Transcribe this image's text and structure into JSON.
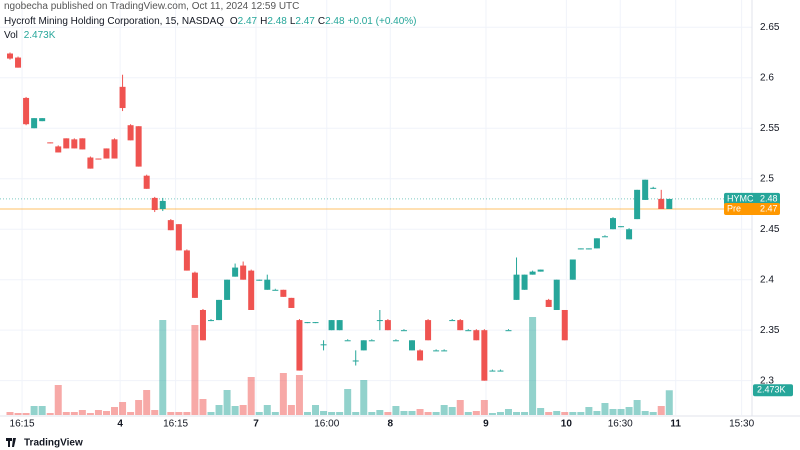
{
  "chart_data": {
    "type": "candlestick",
    "publisher": "ngobecha published on TradingView.com, Oct 11, 2024 12:59 UTC",
    "title": "Hycroft Mining Holding Corporation, 15, NASDAQ",
    "ohlc": [
      {
        "name": "O",
        "value": 2.47
      },
      {
        "name": "H",
        "value": 2.48
      },
      {
        "name": "L",
        "value": 2.47
      },
      {
        "name": "C",
        "value": 2.48
      }
    ],
    "change": "+0.01 (+0.40%)",
    "up_color": "#26a69a",
    "down_color": "#ef5350",
    "candles": {
      "open": [
        2.624,
        2.62,
        2.58,
        2.55,
        2.557,
        2.536,
        2.532,
        2.54,
        2.539,
        2.54,
        2.521,
        2.52,
        2.53,
        2.539,
        2.591,
        2.553,
        2.552,
        2.503,
        2.481,
        2.47,
        2.459,
        2.455,
        2.429,
        2.407,
        2.37,
        2.36,
        2.36,
        2.38,
        2.403,
        2.414,
        2.409,
        2.399,
        2.39,
        2.39,
        2.39,
        2.382,
        2.36,
        2.357,
        2.358,
        2.336,
        2.35,
        2.35,
        2.34,
        2.32,
        2.33,
        2.34,
        2.36,
        2.36,
        2.34,
        2.35,
        2.33,
        2.33,
        2.36,
        2.33,
        2.33,
        2.36,
        2.36,
        2.35,
        2.35,
        2.35,
        2.31,
        2.31,
        2.35,
        2.38,
        2.39,
        2.405,
        2.408,
        2.38,
        2.37,
        2.37,
        2.4,
        2.43,
        2.43,
        2.431,
        2.443,
        2.45,
        2.452,
        2.44,
        2.46,
        2.479,
        2.491,
        2.48,
        2.47
      ],
      "high": [
        2.625,
        2.621,
        2.581,
        2.56,
        2.56,
        2.536,
        2.533,
        2.54,
        2.54,
        2.54,
        2.522,
        2.52,
        2.53,
        2.54,
        2.603,
        2.554,
        2.552,
        2.504,
        2.482,
        2.481,
        2.46,
        2.455,
        2.43,
        2.408,
        2.371,
        2.361,
        2.38,
        2.4,
        2.416,
        2.418,
        2.41,
        2.4,
        2.405,
        2.391,
        2.39,
        2.382,
        2.361,
        2.358,
        2.358,
        2.34,
        2.36,
        2.36,
        2.341,
        2.33,
        2.34,
        2.341,
        2.37,
        2.361,
        2.341,
        2.351,
        2.34,
        2.331,
        2.361,
        2.331,
        2.331,
        2.361,
        2.361,
        2.351,
        2.351,
        2.351,
        2.311,
        2.311,
        2.351,
        2.422,
        2.405,
        2.409,
        2.41,
        2.381,
        2.4,
        2.37,
        2.42,
        2.431,
        2.431,
        2.441,
        2.444,
        2.462,
        2.453,
        2.451,
        2.489,
        2.499,
        2.492,
        2.489,
        2.48
      ],
      "low": [
        2.618,
        2.61,
        2.553,
        2.55,
        2.557,
        2.535,
        2.526,
        2.53,
        2.53,
        2.529,
        2.51,
        2.519,
        2.52,
        2.52,
        2.567,
        2.538,
        2.512,
        2.49,
        2.467,
        2.468,
        2.449,
        2.429,
        2.409,
        2.382,
        2.34,
        2.359,
        2.36,
        2.38,
        2.403,
        2.4,
        2.37,
        2.399,
        2.39,
        2.39,
        2.383,
        2.372,
        2.31,
        2.357,
        2.357,
        2.33,
        2.35,
        2.35,
        2.34,
        2.315,
        2.33,
        2.34,
        2.35,
        2.35,
        2.34,
        2.35,
        2.33,
        2.32,
        2.34,
        2.33,
        2.33,
        2.36,
        2.35,
        2.35,
        2.34,
        2.3,
        2.31,
        2.31,
        2.35,
        2.38,
        2.39,
        2.405,
        2.408,
        2.373,
        2.37,
        2.34,
        2.4,
        2.43,
        2.43,
        2.431,
        2.443,
        2.45,
        2.452,
        2.44,
        2.46,
        2.479,
        2.49,
        2.47,
        2.47
      ],
      "close": [
        2.619,
        2.61,
        2.554,
        2.56,
        2.56,
        2.535,
        2.526,
        2.53,
        2.53,
        2.529,
        2.51,
        2.519,
        2.52,
        2.52,
        2.57,
        2.538,
        2.512,
        2.49,
        2.469,
        2.478,
        2.449,
        2.429,
        2.409,
        2.382,
        2.34,
        2.36,
        2.38,
        2.4,
        2.412,
        2.4,
        2.37,
        2.4,
        2.4,
        2.39,
        2.383,
        2.372,
        2.31,
        2.358,
        2.358,
        2.336,
        2.36,
        2.36,
        2.34,
        2.32,
        2.34,
        2.34,
        2.36,
        2.35,
        2.34,
        2.35,
        2.34,
        2.32,
        2.34,
        2.33,
        2.33,
        2.36,
        2.35,
        2.35,
        2.34,
        2.3,
        2.31,
        2.31,
        2.35,
        2.405,
        2.405,
        2.408,
        2.41,
        2.373,
        2.4,
        2.34,
        2.42,
        2.431,
        2.431,
        2.441,
        2.443,
        2.461,
        2.453,
        2.45,
        2.489,
        2.499,
        2.491,
        2.47,
        2.48
      ]
    },
    "volume": {
      "name": "Vol",
      "values": [
        300,
        200,
        200,
        900,
        900,
        200,
        3000,
        300,
        300,
        500,
        200,
        500,
        400,
        800,
        1300,
        300,
        1500,
        2500,
        500,
        9500,
        300,
        300,
        300,
        9000,
        1600,
        300,
        1000,
        2500,
        900,
        1000,
        3800,
        300,
        1000,
        300,
        4200,
        1000,
        4000,
        300,
        1000,
        400,
        300,
        300,
        2600,
        300,
        3500,
        300,
        500,
        300,
        900,
        400,
        400,
        600,
        300,
        300,
        1000,
        800,
        1500,
        300,
        400,
        1500,
        200,
        300,
        600,
        300,
        300,
        9800,
        700,
        300,
        400,
        300,
        300,
        300,
        800,
        400,
        1200,
        600,
        600,
        800,
        1500,
        400,
        300,
        900,
        2473
      ],
      "last_label": "2.473K",
      "ylim": [
        0,
        10000
      ]
    },
    "ylim": [
      2.266,
      2.677
    ],
    "yticks": [
      2.3,
      2.35,
      2.4,
      2.45,
      2.5,
      2.55,
      2.6,
      2.65
    ],
    "xticks": [
      {
        "value": 1.5,
        "label": "16:15"
      },
      {
        "value": 13.7,
        "label": "4",
        "bold": true
      },
      {
        "value": 20.6,
        "label": "16:15"
      },
      {
        "value": 30.6,
        "label": "7",
        "bold": true
      },
      {
        "value": 39.4,
        "label": "16:00"
      },
      {
        "value": 47.3,
        "label": "8",
        "bold": true
      },
      {
        "value": 59.2,
        "label": "9",
        "bold": true
      },
      {
        "value": 69.2,
        "label": "10",
        "bold": true
      },
      {
        "value": 75.9,
        "label": "16:30"
      },
      {
        "value": 82.8,
        "label": "11",
        "bold": true
      },
      {
        "value": 91,
        "label": "15:30"
      }
    ],
    "price_lines": [
      {
        "name": "HYMC",
        "value": 2.48,
        "color": "#26a69a"
      },
      {
        "name": "Pre",
        "value": 2.47,
        "color": "#ff9800"
      }
    ],
    "footer": "TradingView"
  }
}
